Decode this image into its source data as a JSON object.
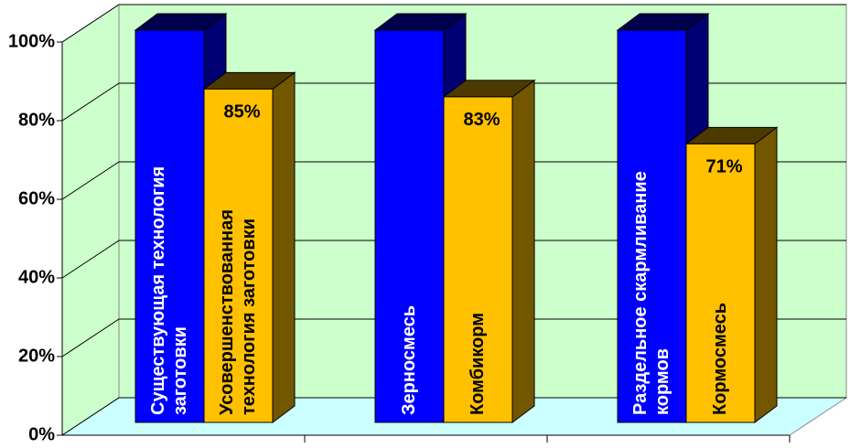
{
  "chart_data": {
    "type": "bar3d",
    "categories": [
      null,
      null,
      null
    ],
    "ylim": [
      0,
      100
    ],
    "yticks": [
      {
        "value": 0,
        "label": "0%"
      },
      {
        "value": 20,
        "label": "20%"
      },
      {
        "value": 40,
        "label": "40%"
      },
      {
        "value": 60,
        "label": "60%"
      },
      {
        "value": 80,
        "label": "80%"
      },
      {
        "value": 100,
        "label": "100%"
      }
    ],
    "grid": true,
    "series": [
      {
        "color": "#0000ff",
        "values": [
          100,
          100,
          100
        ],
        "bar_labels": [
          [
            "Существующая технология",
            "заготовки"
          ],
          [
            "Зерносмесь"
          ],
          [
            "Раздельное скармливание",
            "кормов"
          ]
        ]
      },
      {
        "color": "#ffc000",
        "values": [
          85,
          83,
          71
        ],
        "value_labels": [
          "85%",
          "83%",
          "71%"
        ],
        "bar_labels": [
          [
            "Усовершенствованная",
            "технология заготовки"
          ],
          [
            "Комбикорм"
          ],
          [
            "Кормосмесь"
          ]
        ]
      }
    ]
  }
}
